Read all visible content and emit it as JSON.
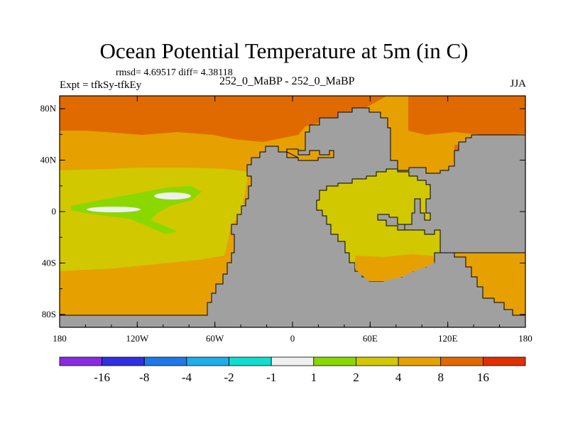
{
  "chart_data": {
    "type": "heatmap",
    "title": "Ocean Potential Temperature at 5m (in C)",
    "stats_text": "rmsd= 4.69517 diff= 4.38118",
    "left_label": "Expt = tfkSy-tfkEy",
    "center_label": "252_0_MaBP - 252_0_MaBP",
    "right_label": "JJA",
    "x_axis": {
      "range": [
        -180,
        180
      ],
      "ticks": [
        {
          "value": -180,
          "label": "180"
        },
        {
          "value": -120,
          "label": "120W"
        },
        {
          "value": -60,
          "label": "60W"
        },
        {
          "value": 0,
          "label": "0"
        },
        {
          "value": 60,
          "label": "60E"
        },
        {
          "value": 120,
          "label": "120E"
        },
        {
          "value": 180,
          "label": "180"
        }
      ]
    },
    "y_axis": {
      "range": [
        -90,
        90
      ],
      "ticks": [
        {
          "value": 80,
          "label": "80N"
        },
        {
          "value": 40,
          "label": "40N"
        },
        {
          "value": 0,
          "label": "0"
        },
        {
          "value": -40,
          "label": "40S"
        },
        {
          "value": -80,
          "label": "80S"
        }
      ]
    },
    "colorbar": {
      "levels": [
        "-16",
        "-8",
        "-4",
        "-2",
        "-1",
        "1",
        "2",
        "4",
        "8",
        "16"
      ],
      "colors": [
        "#8a2be2",
        "#3030e0",
        "#1e78e8",
        "#1eaee8",
        "#10dcd0",
        "#f0f0f0",
        "#8ad800",
        "#d2c800",
        "#e6a000",
        "#e06a00",
        "#e03000"
      ]
    },
    "land_color": "#a0a0a0"
  }
}
